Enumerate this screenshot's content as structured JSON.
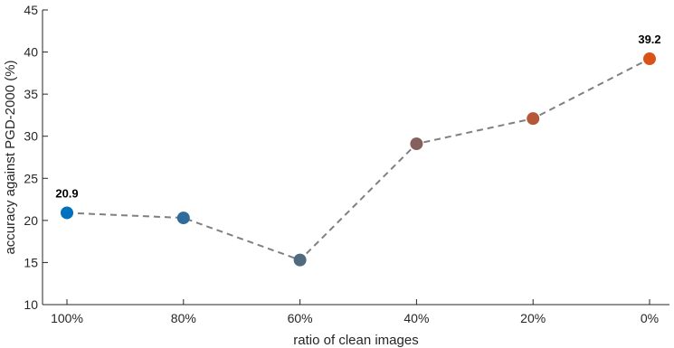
{
  "chart_data": {
    "type": "line",
    "xlabel": "ratio of clean images",
    "ylabel": "accuracy against PGD-2000 (%)",
    "categories": [
      "100%",
      "80%",
      "60%",
      "40%",
      "20%",
      "0%"
    ],
    "values": [
      20.9,
      20.3,
      15.3,
      29.1,
      32.1,
      39.2
    ],
    "point_colors": [
      "#0072BD",
      "#2F6B9B",
      "#506A80",
      "#86605C",
      "#B5583A",
      "#D95319"
    ],
    "line_color": "#808080",
    "line_style": "dashed",
    "ylim": [
      10,
      45
    ],
    "yticks": [
      10,
      15,
      20,
      25,
      30,
      35,
      40,
      45
    ],
    "data_labels": [
      {
        "index": 0,
        "text": "20.9"
      },
      {
        "index": 5,
        "text": "39.2"
      }
    ],
    "grid": false
  }
}
